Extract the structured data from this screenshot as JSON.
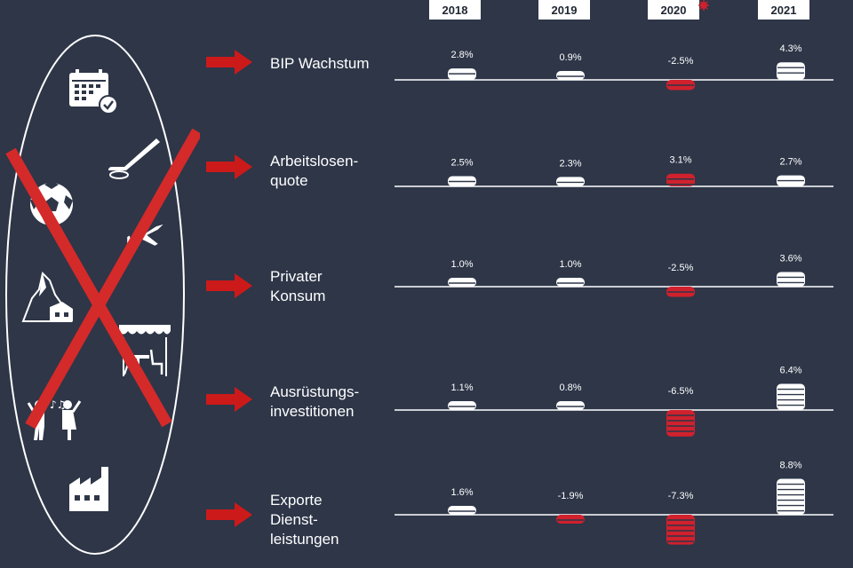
{
  "years": [
    "2018",
    "2019",
    "2020",
    "2021"
  ],
  "colors": {
    "background": "#2e3648",
    "positive": "#ffffff",
    "negative": "#d0212d",
    "arrow": "#cc1a1a",
    "cross": "#d42a2a"
  },
  "activity_icons": [
    "calendar-check-icon",
    "hockey-stick-icon",
    "soccer-ball-icon",
    "airplane-icon",
    "matterhorn-mountain-icon",
    "restaurant-terrace-icon",
    "dancing-people-icon",
    "factory-icon"
  ],
  "chart_data": {
    "type": "bar",
    "title": "",
    "categories": [
      "2018",
      "2019",
      "2020",
      "2021"
    ],
    "unit": "%",
    "series": [
      {
        "name": "BIP Wachstum",
        "values": [
          2.8,
          0.9,
          -2.5,
          4.3
        ],
        "labels": [
          "2.8%",
          "0.9%",
          "-2.5%",
          "4.3%"
        ]
      },
      {
        "name": "Arbeitslosen-\nquote",
        "values": [
          2.5,
          2.3,
          3.1,
          2.7
        ],
        "labels": [
          "2.5%",
          "2.3%",
          "3.1%",
          "2.7%"
        ]
      },
      {
        "name": "Privater\nKonsum",
        "values": [
          1.0,
          1.0,
          -2.5,
          3.6
        ],
        "labels": [
          "1.0%",
          "1.0%",
          "-2.5%",
          "3.6%"
        ]
      },
      {
        "name": "Ausrüstungs-\ninvestitionen",
        "values": [
          1.1,
          0.8,
          -6.5,
          6.4
        ],
        "labels": [
          "1.1%",
          "0.8%",
          "-6.5%",
          "6.4%"
        ]
      },
      {
        "name": "Exporte\nDienst-\nleistungen",
        "values": [
          1.6,
          -1.9,
          -7.3,
          8.8
        ],
        "labels": [
          "1.6%",
          "-1.9%",
          "-7.3%",
          "8.8%"
        ]
      }
    ]
  }
}
